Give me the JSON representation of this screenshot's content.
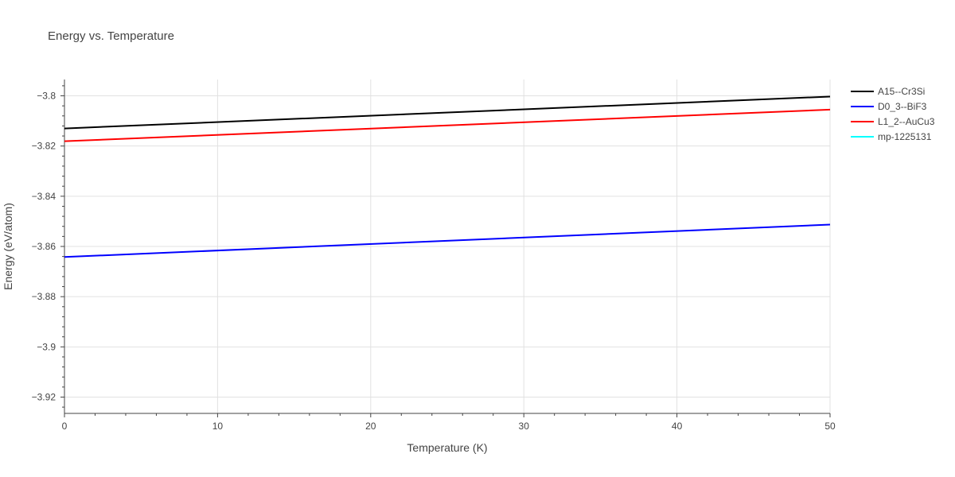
{
  "chart_data": {
    "type": "line",
    "title": "Energy vs. Temperature",
    "xlabel": "Temperature (K)",
    "ylabel": "Energy (eV/atom)",
    "xlim": [
      0,
      50
    ],
    "ylim": [
      -3.9265,
      -3.7935
    ],
    "x_ticks": [
      0,
      10,
      20,
      30,
      40,
      50
    ],
    "x_tick_labels": [
      "0",
      "10",
      "20",
      "30",
      "40",
      "50"
    ],
    "y_ticks": [
      -3.8,
      -3.82,
      -3.84,
      -3.86,
      -3.88,
      -3.9,
      -3.92
    ],
    "y_tick_labels": [
      "−3.8",
      "−3.82",
      "−3.84",
      "−3.86",
      "−3.88",
      "−3.9",
      "−3.92"
    ],
    "grid": true,
    "legend_position": "top-right, outside plot",
    "series": [
      {
        "name": "A15--Cr3Si",
        "color": "#000000",
        "x": [
          0,
          50
        ],
        "y": [
          -3.813,
          -3.8003
        ]
      },
      {
        "name": "D0_3--BiF3",
        "color": "#0000ff",
        "x": [
          0,
          50
        ],
        "y": [
          -3.8642,
          -3.8513
        ]
      },
      {
        "name": "L1_2--AuCu3",
        "color": "#ff0000",
        "x": [
          0,
          50
        ],
        "y": [
          -3.8181,
          -3.8055
        ]
      },
      {
        "name": "mp-1225131",
        "color": "#00ffff",
        "x": [],
        "y": []
      }
    ]
  }
}
